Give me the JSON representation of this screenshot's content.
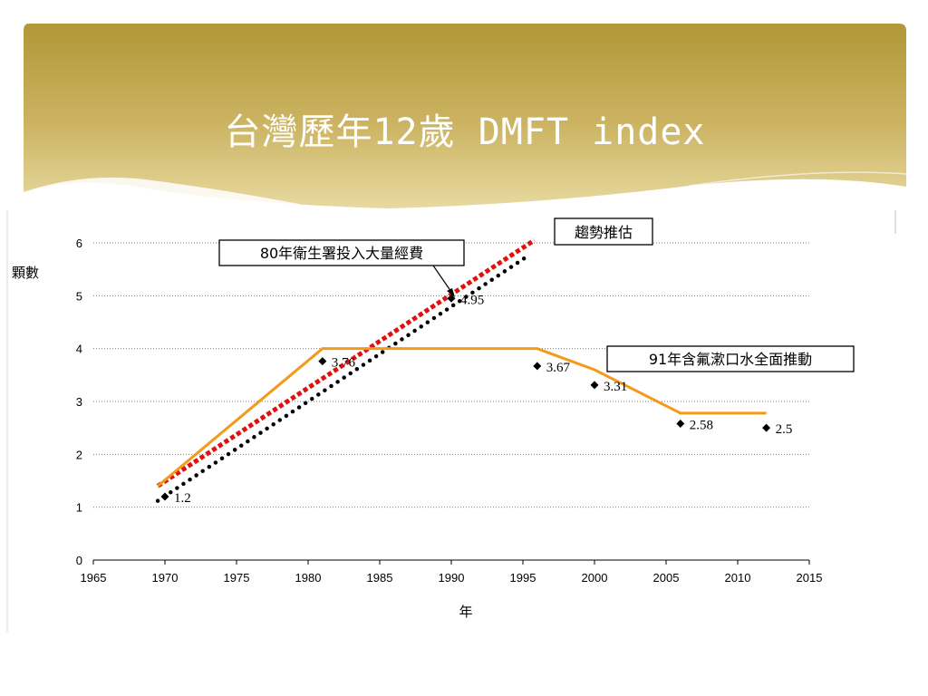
{
  "slide": {
    "title": "台灣歷年12歲 DMFT index",
    "header_color_dark": "#b49a3c",
    "header_color_light": "#e6d597"
  },
  "chart_data": {
    "type": "scatter",
    "xlabel": "年",
    "ylabel": "顆數",
    "xlim": [
      1965,
      2015
    ],
    "ylim": [
      0,
      6
    ],
    "xticks": [
      1965,
      1970,
      1975,
      1980,
      1985,
      1990,
      1995,
      2000,
      2005,
      2010,
      2015
    ],
    "yticks": [
      0,
      1,
      2,
      3,
      4,
      5,
      6
    ],
    "grid": "horizontal dotted",
    "series": [
      {
        "marker": "diamond",
        "color": "#000000",
        "points": [
          {
            "x": 1970,
            "y": 1.2,
            "label": "1.2"
          },
          {
            "x": 1981,
            "y": 3.76,
            "label": "3.76"
          },
          {
            "x": 1990,
            "y": 4.95,
            "label": "4.95"
          },
          {
            "x": 1996,
            "y": 3.67,
            "label": "3.67"
          },
          {
            "x": 2000,
            "y": 3.31,
            "label": "3.31"
          },
          {
            "x": 2006,
            "y": 2.58,
            "label": "2.58"
          },
          {
            "x": 2012,
            "y": 2.5,
            "label": "2.5"
          }
        ]
      }
    ],
    "lines": [
      {
        "style": "dotted-black",
        "color": "#000000",
        "points": [
          [
            1969.5,
            1.12
          ],
          [
            1995.5,
            5.78
          ]
        ]
      },
      {
        "style": "dashed-red",
        "color": "#e01010",
        "points": [
          [
            1969.5,
            1.4
          ],
          [
            1995.8,
            6.05
          ]
        ]
      },
      {
        "style": "solid-orange",
        "color": "#f29b1a",
        "points": [
          [
            1969.5,
            1.4
          ],
          [
            1981,
            4.0
          ],
          [
            1996,
            4.0
          ],
          [
            2000,
            3.6
          ],
          [
            2006,
            2.78
          ],
          [
            2012,
            2.78
          ]
        ]
      }
    ],
    "annotations": [
      {
        "text": "80年衛生署投入大量經費"
      },
      {
        "text": "趨勢推估"
      },
      {
        "text": "91年含氟漱口水全面推動"
      }
    ]
  }
}
